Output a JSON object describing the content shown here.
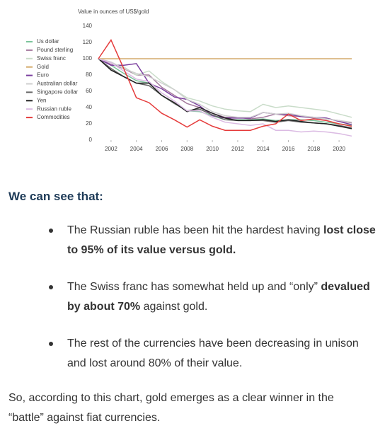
{
  "chart_data": {
    "type": "line",
    "y_label": "Value in ounces of US$/gold",
    "x": [
      2001,
      2002,
      2003,
      2004,
      2005,
      2006,
      2007,
      2008,
      2009,
      2010,
      2011,
      2012,
      2013,
      2014,
      2015,
      2016,
      2017,
      2018,
      2019,
      2020,
      2021
    ],
    "xlim": [
      2001,
      2021
    ],
    "xticks": [
      2002,
      2004,
      2006,
      2008,
      2010,
      2012,
      2014,
      2016,
      2018,
      2020
    ],
    "ylim": [
      0,
      140
    ],
    "yticks": [
      0,
      20,
      40,
      60,
      80,
      100,
      120,
      140
    ],
    "series": [
      {
        "name": "Us dollar",
        "color": "#7cc59c",
        "values": [
          100,
          92,
          82,
          73,
          70,
          55,
          45,
          36,
          35,
          30,
          25,
          25,
          25,
          26,
          24,
          25,
          25,
          24,
          22,
          20,
          18
        ]
      },
      {
        "name": "Pound sterling",
        "color": "#a57a9e",
        "values": [
          100,
          93,
          88,
          80,
          80,
          65,
          55,
          45,
          40,
          33,
          28,
          28,
          26,
          28,
          32,
          30,
          29,
          27,
          26,
          24,
          21
        ]
      },
      {
        "name": "Swiss franc",
        "color": "#c9dcc9",
        "values": [
          100,
          95,
          90,
          80,
          85,
          72,
          62,
          52,
          48,
          42,
          38,
          36,
          35,
          44,
          40,
          42,
          40,
          38,
          36,
          32,
          28
        ]
      },
      {
        "name": "Gold",
        "color": "#d4aa6c",
        "values": [
          100,
          100,
          100,
          100,
          100,
          100,
          100,
          100,
          100,
          100,
          100,
          100,
          100,
          100,
          100,
          100,
          100,
          100,
          100,
          100,
          100
        ]
      },
      {
        "name": "Euro",
        "color": "#7a3e9e",
        "values": [
          100,
          92,
          92,
          94,
          70,
          63,
          53,
          50,
          42,
          30,
          27,
          27,
          27,
          34,
          32,
          32,
          29,
          28,
          27,
          23,
          19
        ]
      },
      {
        "name": "Australian dollar",
        "color": "#cfcfcf",
        "values": [
          100,
          96,
          88,
          82,
          78,
          70,
          62,
          50,
          44,
          35,
          30,
          28,
          28,
          34,
          32,
          33,
          30,
          28,
          26,
          24,
          22
        ]
      },
      {
        "name": "Singapore dollar",
        "color": "#666666",
        "values": [
          100,
          88,
          78,
          70,
          67,
          55,
          45,
          36,
          38,
          31,
          25,
          24,
          24,
          24,
          22,
          24,
          22,
          21,
          20,
          18,
          15
        ]
      },
      {
        "name": "Yen",
        "color": "#222222",
        "values": [
          100,
          86,
          78,
          70,
          70,
          55,
          46,
          35,
          40,
          33,
          27,
          24,
          24,
          25,
          23,
          25,
          23,
          21,
          20,
          17,
          14
        ]
      },
      {
        "name": "Russian ruble",
        "color": "#dbbbe3",
        "values": [
          100,
          95,
          85,
          75,
          72,
          58,
          48,
          36,
          36,
          28,
          22,
          20,
          18,
          20,
          12,
          12,
          10,
          11,
          10,
          8,
          5
        ]
      },
      {
        "name": "Commodities",
        "color": "#e53b3b",
        "values": [
          100,
          123,
          88,
          52,
          46,
          33,
          25,
          16,
          25,
          17,
          12,
          12,
          12,
          17,
          20,
          32,
          24,
          26,
          24,
          20,
          17
        ]
      }
    ]
  },
  "heading": "We can see that:",
  "bullets": [
    [
      {
        "text": "The Russian ruble has been hit the hardest having "
      },
      {
        "text": "lost close to 95% of its value versus gold.",
        "bold": true
      }
    ],
    [
      {
        "text": "The Swiss franc has somewhat held up and “only” "
      },
      {
        "text": "devalued by about 70%",
        "bold": true
      },
      {
        "text": " against gold."
      }
    ],
    [
      {
        "text": "The rest of the currencies have been decreasing in unison and lost around 80% of their value."
      }
    ]
  ],
  "conclusion": "So, according to this chart, gold emerges as a clear winner in the “battle” against fiat currencies."
}
